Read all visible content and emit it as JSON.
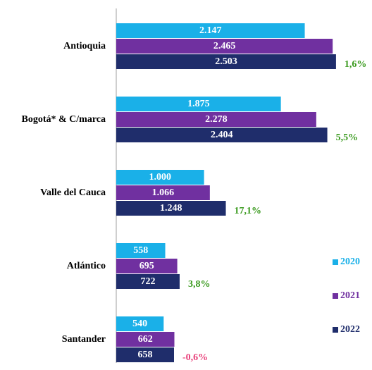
{
  "chart_data": {
    "type": "hbar",
    "categories": [
      "Antioquia",
      "Bogotá* & C/marca",
      "Valle del Cauca",
      "Atlántico",
      "Santander"
    ],
    "series": [
      {
        "name": "2020",
        "color": "#1ab0e8",
        "values": [
          2147,
          1875,
          1000,
          558,
          540
        ],
        "value_labels": [
          "2.147",
          "1.875",
          "1.000",
          "558",
          "540"
        ]
      },
      {
        "name": "2021",
        "color": "#7030a0",
        "values": [
          2465,
          2278,
          1066,
          695,
          662
        ],
        "value_labels": [
          "2.465",
          "2.278",
          "1.066",
          "695",
          "662"
        ]
      },
      {
        "name": "2022",
        "color": "#1f2d6b",
        "values": [
          2503,
          2404,
          1248,
          722,
          658
        ],
        "value_labels": [
          "2.503",
          "2.404",
          "1.248",
          "722",
          "658"
        ]
      }
    ],
    "annotations": [
      {
        "text": "1,6%",
        "color": "#3a9a1e"
      },
      {
        "text": "5,5%",
        "color": "#3a9a1e"
      },
      {
        "text": "17,1%",
        "color": "#3a9a1e"
      },
      {
        "text": "3,8%",
        "color": "#3a9a1e"
      },
      {
        "text": "-0,6%",
        "color": "#e8407a"
      }
    ],
    "xlim": [
      0,
      2600
    ],
    "legend": "right"
  }
}
